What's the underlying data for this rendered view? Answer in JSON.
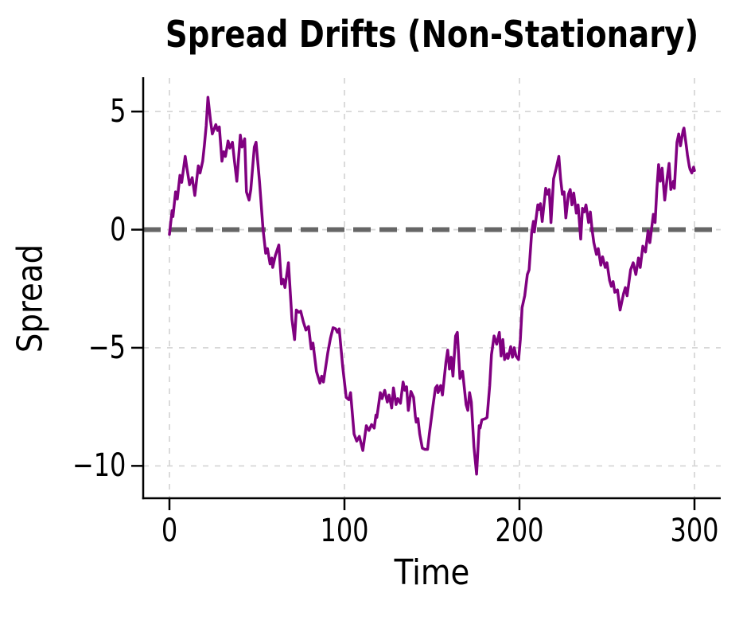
{
  "chart_data": {
    "type": "line",
    "title": "Spread Drifts (Non-Stationary)",
    "xlabel": "Time",
    "ylabel": "Spread",
    "xlim": [
      -15,
      315
    ],
    "ylim": [
      -11.37,
      6.42
    ],
    "x_ticks": [
      {
        "value": 0,
        "label": "0"
      },
      {
        "value": 100,
        "label": "100"
      },
      {
        "value": 200,
        "label": "200"
      },
      {
        "value": 300,
        "label": "300"
      }
    ],
    "y_ticks": [
      {
        "value": 5,
        "label": "5"
      },
      {
        "value": 0,
        "label": "0"
      },
      {
        "value": -5,
        "label": "−5"
      },
      {
        "value": -10,
        "label": "−10"
      }
    ],
    "grid": {
      "visible": true,
      "style": "dashed",
      "color": "#d7d7d7",
      "width": 1.8,
      "dash": "7 8"
    },
    "reference_line": {
      "value": 0,
      "color": "#666666",
      "style": "dashed",
      "width": 6,
      "dash": "22 11"
    },
    "axis_color": "#000000",
    "legend": "none",
    "series": [
      {
        "name": "spread",
        "color": "#800080",
        "width": 3.5,
        "points": [
          [
            0,
            -0.2
          ],
          [
            1.5,
            0.8
          ],
          [
            2,
            0.55
          ],
          [
            3.5,
            1.6
          ],
          [
            4.5,
            1.3
          ],
          [
            6,
            2.3
          ],
          [
            7,
            2.0
          ],
          [
            9,
            3.1
          ],
          [
            10,
            2.6
          ],
          [
            11.5,
            1.9
          ],
          [
            13,
            2.2
          ],
          [
            14.5,
            1.45
          ],
          [
            16.5,
            2.7
          ],
          [
            17.5,
            2.4
          ],
          [
            19,
            2.9
          ],
          [
            20,
            3.6
          ],
          [
            21,
            4.4
          ],
          [
            22,
            5.6
          ],
          [
            23.5,
            4.6
          ],
          [
            24.5,
            4.05
          ],
          [
            26.5,
            4.45
          ],
          [
            27.5,
            4.2
          ],
          [
            28.5,
            4.35
          ],
          [
            30,
            2.9
          ],
          [
            31,
            3.3
          ],
          [
            32,
            3.1
          ],
          [
            33.5,
            3.75
          ],
          [
            34.5,
            3.45
          ],
          [
            36,
            3.7
          ],
          [
            37,
            3.0
          ],
          [
            38.5,
            2.05
          ],
          [
            40.5,
            4.0
          ],
          [
            41.5,
            3.5
          ],
          [
            43,
            3.85
          ],
          [
            44,
            1.6
          ],
          [
            45.5,
            1.25
          ],
          [
            46.5,
            1.7
          ],
          [
            48.5,
            3.5
          ],
          [
            49.5,
            3.7
          ],
          [
            51.5,
            2.0
          ],
          [
            52.5,
            1.0
          ],
          [
            53.5,
            0.0
          ],
          [
            55,
            -1.0
          ],
          [
            56,
            -0.8
          ],
          [
            57.5,
            -1.45
          ],
          [
            58.5,
            -1.2
          ],
          [
            59,
            -1.6
          ],
          [
            60.5,
            -1.1
          ],
          [
            62.5,
            -0.65
          ],
          [
            64,
            -2.3
          ],
          [
            65,
            -2.1
          ],
          [
            66,
            -2.45
          ],
          [
            68,
            -1.4
          ],
          [
            70,
            -3.8
          ],
          [
            71.5,
            -4.65
          ],
          [
            72.5,
            -3.4
          ],
          [
            74,
            -3.5
          ],
          [
            75,
            -3.45
          ],
          [
            76.5,
            -3.9
          ],
          [
            78,
            -4.25
          ],
          [
            79.5,
            -4.1
          ],
          [
            81,
            -5.05
          ],
          [
            82,
            -4.8
          ],
          [
            84,
            -6.0
          ],
          [
            86,
            -6.5
          ],
          [
            87,
            -6.2
          ],
          [
            88,
            -6.45
          ],
          [
            90.5,
            -5.2
          ],
          [
            92,
            -4.6
          ],
          [
            93.5,
            -4.15
          ],
          [
            95,
            -4.2
          ],
          [
            96,
            -4.35
          ],
          [
            97,
            -4.2
          ],
          [
            99,
            -5.8
          ],
          [
            101,
            -7.1
          ],
          [
            102.5,
            -7.2
          ],
          [
            103.5,
            -6.9
          ],
          [
            105.5,
            -8.65
          ],
          [
            107,
            -8.95
          ],
          [
            108.5,
            -8.75
          ],
          [
            110.5,
            -9.35
          ],
          [
            112.5,
            -8.3
          ],
          [
            114,
            -8.5
          ],
          [
            115.5,
            -8.25
          ],
          [
            117,
            -8.4
          ],
          [
            118,
            -7.85
          ],
          [
            118.5,
            -7.95
          ],
          [
            120.5,
            -6.9
          ],
          [
            121.5,
            -7.15
          ],
          [
            123,
            -6.8
          ],
          [
            124.5,
            -7.3
          ],
          [
            125.5,
            -7.0
          ],
          [
            127,
            -7.55
          ],
          [
            128,
            -6.7
          ],
          [
            129.5,
            -7.4
          ],
          [
            130.5,
            -7.15
          ],
          [
            132,
            -7.35
          ],
          [
            133.5,
            -6.45
          ],
          [
            134.5,
            -6.8
          ],
          [
            135.5,
            -6.65
          ],
          [
            136.5,
            -7.65
          ],
          [
            138,
            -6.85
          ],
          [
            139.5,
            -7.1
          ],
          [
            140.5,
            -7.9
          ],
          [
            141,
            -8.15
          ],
          [
            142,
            -8.0
          ],
          [
            143,
            -8.65
          ],
          [
            144.5,
            -9.25
          ],
          [
            146,
            -9.3
          ],
          [
            147.5,
            -9.3
          ],
          [
            148.5,
            -8.65
          ],
          [
            150.5,
            -7.5
          ],
          [
            152,
            -6.7
          ],
          [
            153,
            -6.6
          ],
          [
            153.5,
            -6.9
          ],
          [
            155,
            -6.6
          ],
          [
            156,
            -7.0
          ],
          [
            158,
            -5.6
          ],
          [
            159,
            -5.1
          ],
          [
            160,
            -5.9
          ],
          [
            161,
            -5.4
          ],
          [
            162,
            -6.2
          ],
          [
            163.5,
            -4.5
          ],
          [
            164.5,
            -4.35
          ],
          [
            166,
            -6.3
          ],
          [
            167.5,
            -6.0
          ],
          [
            169.5,
            -7.4
          ],
          [
            170.5,
            -7.65
          ],
          [
            171.5,
            -6.9
          ],
          [
            172.5,
            -7.3
          ],
          [
            174,
            -9.2
          ],
          [
            175.5,
            -10.35
          ],
          [
            177,
            -8.3
          ],
          [
            177.5,
            -8.4
          ],
          [
            178.5,
            -8.05
          ],
          [
            180.5,
            -8.0
          ],
          [
            181.5,
            -7.95
          ],
          [
            183,
            -6.6
          ],
          [
            184,
            -5.3
          ],
          [
            185.5,
            -4.5
          ],
          [
            187,
            -4.85
          ],
          [
            188.5,
            -4.35
          ],
          [
            189.5,
            -5.35
          ],
          [
            190.5,
            -4.65
          ],
          [
            191.5,
            -5.5
          ],
          [
            193,
            -5.25
          ],
          [
            193.5,
            -5.45
          ],
          [
            195,
            -4.95
          ],
          [
            196,
            -5.4
          ],
          [
            197,
            -5.0
          ],
          [
            198,
            -5.35
          ],
          [
            199.5,
            -5.5
          ],
          [
            200.5,
            -4.65
          ],
          [
            201.5,
            -3.3
          ],
          [
            203,
            -2.8
          ],
          [
            204.5,
            -1.9
          ],
          [
            205.5,
            -1.7
          ],
          [
            207,
            -0.1
          ],
          [
            208,
            0.35
          ],
          [
            208.5,
            -0.1
          ],
          [
            210.5,
            1.05
          ],
          [
            211,
            0.85
          ],
          [
            212,
            1.1
          ],
          [
            213,
            0.35
          ],
          [
            215,
            1.75
          ],
          [
            216,
            1.5
          ],
          [
            217,
            1.7
          ],
          [
            218,
            0.3
          ],
          [
            219.5,
            2.15
          ],
          [
            221,
            2.6
          ],
          [
            222.5,
            3.1
          ],
          [
            223.5,
            2.15
          ],
          [
            224.5,
            1.5
          ],
          [
            225.5,
            1.6
          ],
          [
            226.5,
            0.5
          ],
          [
            228,
            1.5
          ],
          [
            229,
            1.7
          ],
          [
            230,
            1.05
          ],
          [
            231,
            1.55
          ],
          [
            232.5,
            0.7
          ],
          [
            233.5,
            1.05
          ],
          [
            235,
            -0.4
          ],
          [
            236,
            0.9
          ],
          [
            237,
            0.75
          ],
          [
            238,
            1.05
          ],
          [
            239.5,
            0.3
          ],
          [
            240.5,
            0.75
          ],
          [
            241.5,
            0.0
          ],
          [
            242.5,
            -0.55
          ],
          [
            244,
            -1.05
          ],
          [
            245,
            -0.8
          ],
          [
            246.5,
            -1.5
          ],
          [
            247.5,
            -1.15
          ],
          [
            249,
            -1.6
          ],
          [
            250,
            -1.4
          ],
          [
            251.5,
            -2.15
          ],
          [
            252.5,
            -2.4
          ],
          [
            253.5,
            -2.2
          ],
          [
            254.5,
            -2.65
          ],
          [
            256,
            -2.55
          ],
          [
            257.5,
            -3.4
          ],
          [
            259.5,
            -2.7
          ],
          [
            260.5,
            -2.45
          ],
          [
            261.5,
            -2.8
          ],
          [
            263.5,
            -1.7
          ],
          [
            265,
            -1.4
          ],
          [
            266.5,
            -1.9
          ],
          [
            268,
            -1.2
          ],
          [
            269,
            -1.6
          ],
          [
            270.5,
            -0.7
          ],
          [
            272,
            -0.95
          ],
          [
            273.5,
            -0.05
          ],
          [
            274.5,
            -0.55
          ],
          [
            276.5,
            0.65
          ],
          [
            277.5,
            0.3
          ],
          [
            278.5,
            1.7
          ],
          [
            279.5,
            2.75
          ],
          [
            280.5,
            2.05
          ],
          [
            281.5,
            2.6
          ],
          [
            282.5,
            1.7
          ],
          [
            283,
            1.25
          ],
          [
            284.5,
            2.25
          ],
          [
            285.5,
            2.8
          ],
          [
            286.5,
            1.7
          ],
          [
            288,
            2.05
          ],
          [
            288.5,
            1.75
          ],
          [
            290,
            3.7
          ],
          [
            291,
            4.05
          ],
          [
            292,
            3.55
          ],
          [
            293.5,
            4.2
          ],
          [
            294,
            4.3
          ],
          [
            295.5,
            3.45
          ],
          [
            296,
            3.15
          ],
          [
            297,
            2.7
          ],
          [
            297.5,
            2.55
          ],
          [
            298.5,
            2.4
          ],
          [
            299.5,
            2.65
          ],
          [
            300,
            2.5
          ]
        ]
      }
    ]
  }
}
